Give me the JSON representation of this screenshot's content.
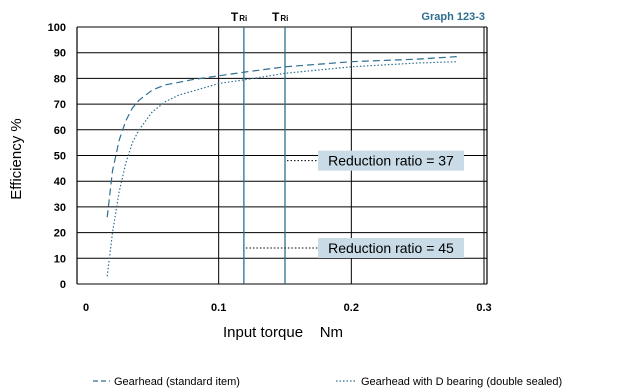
{
  "chart_data": {
    "type": "line",
    "graph_id": "Graph 123-3",
    "xlabel": "Input torque    Nm",
    "ylabel": "Efficiency %",
    "xlim": [
      0,
      0.3
    ],
    "ylim": [
      0,
      100
    ],
    "x_ticks": [
      "0",
      "0.1",
      "0.2",
      "0.3"
    ],
    "x_tick_values": [
      0,
      0.1,
      0.2,
      0.3
    ],
    "y_ticks": [
      "0",
      "10",
      "20",
      "30",
      "40",
      "50",
      "60",
      "70",
      "80",
      "90",
      "100"
    ],
    "y_tick_values": [
      0,
      10,
      20,
      30,
      40,
      50,
      60,
      70,
      80,
      90,
      100
    ],
    "grid": true,
    "colors": {
      "highlight": "#2e6f90",
      "ratio_box": "#c9dbe6",
      "graph_id": "#2e6f90"
    },
    "vertical_markers": [
      {
        "label_main": "T",
        "label_sub": "Ri",
        "x": 0.119
      },
      {
        "label_main": "T",
        "label_sub": "Ri",
        "x": 0.15
      }
    ],
    "annotations": [
      {
        "text": "Reduction ratio = 37",
        "points_to_x": 0.15,
        "y": 48
      },
      {
        "text": "Reduction ratio = 45",
        "points_to_x": 0.119,
        "y": 14
      }
    ],
    "series": [
      {
        "name": "Gearhead (standard item)",
        "style": "dashed",
        "x": [
          0.016,
          0.02,
          0.025,
          0.03,
          0.035,
          0.04,
          0.05,
          0.06,
          0.07,
          0.08,
          0.1,
          0.12,
          0.15,
          0.2,
          0.25,
          0.28
        ],
        "y": [
          26,
          44,
          56,
          63.5,
          68.5,
          71.5,
          75.5,
          77.5,
          78.5,
          79.5,
          81,
          82.5,
          84.5,
          86.5,
          87.5,
          88.5
        ]
      },
      {
        "name": "Gearhead with D bearing (double sealed)",
        "style": "dotted",
        "x": [
          0.016,
          0.02,
          0.025,
          0.03,
          0.035,
          0.04,
          0.05,
          0.06,
          0.07,
          0.08,
          0.1,
          0.12,
          0.15,
          0.2,
          0.25,
          0.28
        ],
        "y": [
          3,
          20,
          36,
          47,
          55,
          60,
          67,
          71,
          73.5,
          75,
          78,
          79.5,
          82,
          84.5,
          86,
          86.5
        ]
      }
    ]
  },
  "legend": {
    "entries": [
      {
        "name": "Gearhead (standard item)",
        "style": "dashed"
      },
      {
        "name": "Gearhead with D bearing (double sealed)",
        "style": "dotted"
      }
    ]
  }
}
